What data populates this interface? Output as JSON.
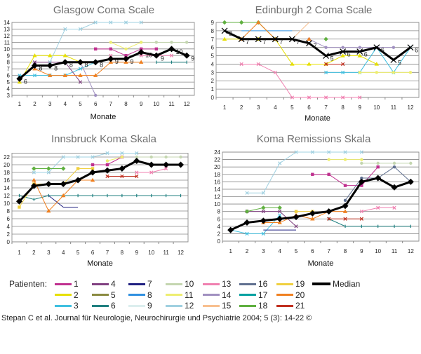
{
  "chart_data": [
    {
      "type": "line",
      "title": "Glasgow Coma Scale",
      "xlabel": "Monate",
      "ylabel": "",
      "categories": [
        1,
        2,
        3,
        4,
        5,
        6,
        7,
        8,
        9,
        10,
        11,
        12
      ],
      "ylim": [
        3,
        14
      ],
      "ytick_step": 1,
      "grid": true,
      "median": {
        "values": [
          5.5,
          7.5,
          7.5,
          8,
          8,
          8,
          8.5,
          8.5,
          9.5,
          9,
          10,
          9
        ],
        "labels": [
          "6",
          "8",
          "8",
          "8",
          "8",
          "8",
          "9",
          "9",
          "10",
          "9",
          "10",
          "9"
        ]
      },
      "series": [
        {
          "name": "1",
          "values": [
            null,
            null,
            null,
            null,
            null,
            10,
            10,
            9,
            10,
            10,
            null,
            null
          ]
        },
        {
          "name": "2",
          "values": [
            5,
            9,
            9,
            9,
            8,
            null,
            null,
            null,
            null,
            null,
            null,
            null
          ]
        },
        {
          "name": "3",
          "values": [
            6,
            6,
            6,
            6,
            7,
            8,
            null,
            null,
            null,
            null,
            null,
            null
          ]
        },
        {
          "name": "4",
          "values": [
            null,
            8,
            8,
            8,
            5,
            null,
            null,
            null,
            null,
            null,
            null,
            null
          ]
        },
        {
          "name": "6",
          "values": [
            null,
            null,
            null,
            null,
            null,
            null,
            null,
            null,
            null,
            8,
            8,
            8
          ]
        },
        {
          "name": "10",
          "values": [
            null,
            null,
            null,
            null,
            null,
            null,
            null,
            null,
            11,
            11,
            11,
            11
          ]
        },
        {
          "name": "11",
          "values": [
            null,
            null,
            null,
            null,
            null,
            null,
            11,
            10,
            11,
            null,
            null,
            null
          ]
        },
        {
          "name": "12",
          "values": [
            null,
            null,
            8,
            13,
            13,
            14,
            14,
            14,
            14,
            null,
            null,
            null
          ]
        },
        {
          "name": "13",
          "values": [
            null,
            null,
            null,
            null,
            null,
            null,
            9,
            null,
            9,
            9,
            9,
            null
          ]
        },
        {
          "name": "14",
          "values": [
            null,
            null,
            null,
            null,
            8,
            3,
            null,
            null,
            null,
            null,
            null,
            null
          ]
        },
        {
          "name": "20",
          "values": [
            null,
            7,
            6,
            6,
            6,
            6,
            8,
            8,
            8,
            null,
            null,
            null
          ]
        }
      ]
    },
    {
      "type": "line",
      "title": "Edinburgh 2 Coma Scale",
      "xlabel": "Monate",
      "ylabel": "",
      "categories": [
        1,
        2,
        3,
        4,
        5,
        6,
        7,
        8,
        9,
        10,
        11,
        12
      ],
      "ylim": [
        0,
        9
      ],
      "ytick_step": 1,
      "grid": true,
      "median": {
        "values": [
          8,
          7,
          7,
          7,
          7,
          6.5,
          5,
          5.5,
          5.5,
          6,
          4.5,
          6
        ],
        "labels": [
          "8",
          "7",
          "7",
          "7",
          "7",
          "7",
          "5",
          "6",
          "6",
          "6",
          "5",
          "6"
        ]
      },
      "series": [
        {
          "name": "2",
          "values": [
            7,
            7,
            7,
            7,
            4,
            4,
            4,
            5,
            5,
            4,
            null,
            null
          ]
        },
        {
          "name": "3",
          "values": [
            null,
            null,
            null,
            null,
            null,
            null,
            3,
            3,
            3,
            6,
            3,
            6
          ]
        },
        {
          "name": "8",
          "values": [
            null,
            8,
            8,
            8,
            8,
            null,
            null,
            null,
            null,
            null,
            null,
            null
          ]
        },
        {
          "name": "11",
          "values": [
            null,
            null,
            null,
            null,
            null,
            null,
            null,
            null,
            3,
            3,
            3,
            3
          ]
        },
        {
          "name": "13",
          "values": [
            null,
            4,
            4,
            3,
            0,
            0,
            0,
            0,
            0,
            null,
            null,
            null
          ]
        },
        {
          "name": "14",
          "values": [
            null,
            null,
            null,
            null,
            null,
            7,
            6,
            6,
            6,
            6,
            6,
            null
          ]
        },
        {
          "name": "15",
          "values": [
            null,
            null,
            null,
            null,
            7,
            9,
            null,
            null,
            null,
            null,
            null,
            null
          ]
        },
        {
          "name": "18",
          "values": [
            9,
            9,
            9,
            7,
            null,
            null,
            7,
            null,
            null,
            null,
            null,
            null
          ]
        },
        {
          "name": "20",
          "values": [
            null,
            7,
            9,
            7,
            null,
            7,
            null,
            null,
            null,
            null,
            null,
            null
          ]
        },
        {
          "name": "21",
          "values": [
            null,
            null,
            null,
            null,
            null,
            null,
            4,
            4,
            null,
            null,
            null,
            null
          ]
        }
      ]
    },
    {
      "type": "line",
      "title": "Innsbruck Koma Skala",
      "xlabel": "Monate",
      "ylabel": "",
      "categories": [
        1,
        2,
        3,
        4,
        5,
        6,
        7,
        8,
        9,
        10,
        11,
        12
      ],
      "ylim": [
        0,
        23
      ],
      "ytick_step": 2,
      "grid": true,
      "median": {
        "values": [
          10.5,
          14.5,
          15,
          15,
          16,
          18,
          18.5,
          19,
          21,
          20,
          20,
          20
        ],
        "labels": []
      },
      "series": [
        {
          "name": "1",
          "values": [
            null,
            null,
            null,
            null,
            null,
            20,
            20,
            22,
            null,
            null,
            null,
            null
          ]
        },
        {
          "name": "6",
          "values": [
            12,
            11,
            12,
            12,
            12,
            12,
            12,
            12,
            12,
            12,
            12,
            12
          ]
        },
        {
          "name": "7",
          "values": [
            null,
            null,
            12,
            9,
            9,
            null,
            null,
            null,
            null,
            null,
            null,
            null
          ]
        },
        {
          "name": "10",
          "values": [
            null,
            null,
            null,
            null,
            null,
            null,
            null,
            null,
            22,
            22,
            22,
            22
          ]
        },
        {
          "name": "11",
          "values": [
            null,
            null,
            null,
            null,
            null,
            null,
            21,
            22,
            null,
            null,
            null,
            null
          ]
        },
        {
          "name": "12",
          "values": [
            null,
            18,
            18,
            22,
            22,
            22,
            23,
            23,
            23,
            null,
            null,
            null
          ]
        },
        {
          "name": "13",
          "values": [
            null,
            null,
            null,
            null,
            null,
            null,
            null,
            null,
            18,
            18,
            19,
            null
          ]
        },
        {
          "name": "18",
          "values": [
            null,
            19,
            19,
            19,
            null,
            null,
            null,
            null,
            null,
            null,
            null,
            null
          ]
        },
        {
          "name": "19",
          "values": [
            9,
            15,
            15,
            15,
            19,
            19,
            null,
            null,
            null,
            null,
            null,
            null
          ]
        },
        {
          "name": "20",
          "values": [
            null,
            16,
            8,
            12,
            16,
            16,
            null,
            null,
            null,
            null,
            null,
            null
          ]
        },
        {
          "name": "21",
          "values": [
            null,
            null,
            null,
            null,
            null,
            null,
            17,
            17,
            17,
            null,
            null,
            null
          ]
        }
      ]
    },
    {
      "type": "line",
      "title": "Koma Remissions Skala",
      "xlabel": "Monate",
      "ylabel": "",
      "categories": [
        1,
        2,
        3,
        4,
        5,
        6,
        7,
        8,
        9,
        10,
        11,
        12
      ],
      "ylim": [
        0,
        24
      ],
      "ytick_step": 2,
      "grid": true,
      "median": {
        "values": [
          3,
          5,
          5.5,
          6,
          6.5,
          7.5,
          8,
          9.5,
          16,
          17,
          14.5,
          16
        ],
        "labels": []
      },
      "series": [
        {
          "name": "1",
          "values": [
            null,
            null,
            null,
            null,
            null,
            18,
            18,
            15,
            15,
            20,
            null,
            null
          ]
        },
        {
          "name": "3",
          "values": [
            3,
            2,
            2,
            7,
            null,
            null,
            null,
            null,
            null,
            null,
            null,
            null
          ]
        },
        {
          "name": "4",
          "values": [
            null,
            8,
            8,
            8,
            4,
            null,
            null,
            null,
            null,
            null,
            null,
            null
          ]
        },
        {
          "name": "6",
          "values": [
            null,
            null,
            null,
            null,
            null,
            null,
            6,
            4,
            4,
            4,
            4,
            4
          ]
        },
        {
          "name": "7",
          "values": [
            null,
            null,
            3,
            3,
            3,
            null,
            null,
            null,
            null,
            null,
            null,
            null
          ]
        },
        {
          "name": "10",
          "values": [
            null,
            null,
            null,
            null,
            null,
            null,
            null,
            null,
            21,
            21,
            21,
            21
          ]
        },
        {
          "name": "11",
          "values": [
            null,
            null,
            null,
            null,
            null,
            null,
            22,
            22,
            22,
            null,
            null,
            null
          ]
        },
        {
          "name": "12",
          "values": [
            null,
            13,
            13,
            21,
            24,
            24,
            24,
            24,
            24,
            null,
            null,
            null
          ]
        },
        {
          "name": "13",
          "values": [
            null,
            null,
            null,
            null,
            null,
            null,
            null,
            null,
            8,
            9,
            9,
            null
          ]
        },
        {
          "name": "16",
          "values": [
            null,
            null,
            null,
            null,
            null,
            null,
            null,
            11,
            17,
            17,
            20,
            16
          ]
        },
        {
          "name": "18",
          "values": [
            null,
            8,
            9,
            9,
            null,
            null,
            null,
            null,
            null,
            null,
            null,
            null
          ]
        },
        {
          "name": "19",
          "values": [
            null,
            null,
            null,
            null,
            8,
            8,
            null,
            null,
            null,
            null,
            null,
            null
          ]
        },
        {
          "name": "20",
          "values": [
            null,
            null,
            5,
            5,
            7,
            6,
            8,
            8,
            null,
            null,
            null,
            null
          ]
        },
        {
          "name": "21",
          "values": [
            null,
            null,
            null,
            null,
            null,
            null,
            6,
            6,
            6,
            null,
            null,
            null
          ]
        }
      ]
    }
  ],
  "legend": {
    "title": "Patienten:",
    "items": [
      {
        "label": "1",
        "color": "#c0308f",
        "marker": "square"
      },
      {
        "label": "2",
        "color": "#e6df00",
        "marker": "triangle"
      },
      {
        "label": "3",
        "color": "#40c0e0",
        "marker": "x"
      },
      {
        "label": "4",
        "color": "#804080",
        "marker": "x"
      },
      {
        "label": "5",
        "color": "#8a8a40",
        "marker": "circle"
      },
      {
        "label": "6",
        "color": "#208080",
        "marker": "plus"
      },
      {
        "label": "7",
        "color": "#202080",
        "marker": "none"
      },
      {
        "label": "8",
        "color": "#3090e0",
        "marker": "none"
      },
      {
        "label": "9",
        "color": "#dceeee",
        "marker": "circle"
      },
      {
        "label": "10",
        "color": "#c4d6b0",
        "marker": "circle"
      },
      {
        "label": "11",
        "color": "#eeee70",
        "marker": "circle"
      },
      {
        "label": "12",
        "color": "#a0d0e0",
        "marker": "x"
      },
      {
        "label": "13",
        "color": "#f080b0",
        "marker": "x"
      },
      {
        "label": "14",
        "color": "#a090c0",
        "marker": "circle"
      },
      {
        "label": "15",
        "color": "#f8c090",
        "marker": "none"
      },
      {
        "label": "16",
        "color": "#607090",
        "marker": "circle"
      },
      {
        "label": "17",
        "color": "#00a0a0",
        "marker": "none"
      },
      {
        "label": "18",
        "color": "#60b040",
        "marker": "diamond"
      },
      {
        "label": "19",
        "color": "#f0d040",
        "marker": "square"
      },
      {
        "label": "20",
        "color": "#f08020",
        "marker": "triangle"
      },
      {
        "label": "21",
        "color": "#c03020",
        "marker": "x"
      }
    ],
    "median": {
      "label": "Median",
      "color": "#000000"
    }
  },
  "citation": "Stepan C et al. Journal für Neurologie, Neurochirurgie und Psychiatrie 2004; 5 (3): 14-22 ©"
}
